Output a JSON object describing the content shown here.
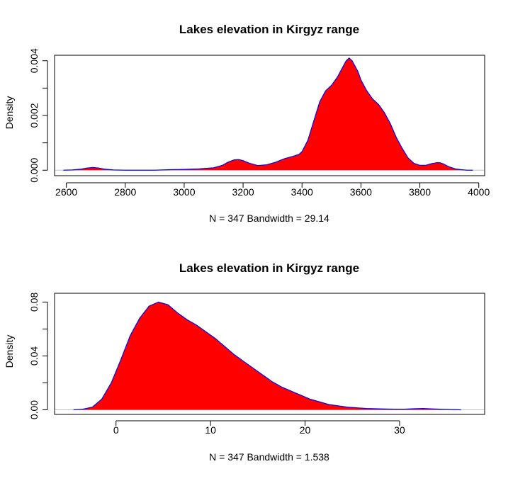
{
  "chart_data": [
    {
      "type": "area",
      "title": "Lakes elevation in Kirgyz range",
      "xlabel": "N = 347   Bandwidth = 29.14",
      "ylabel": "Density",
      "xlim": [
        2560,
        4020
      ],
      "ylim": [
        -0.0002,
        0.0042
      ],
      "xticks": [
        "2600",
        "2800",
        "3000",
        "3200",
        "3400",
        "3600",
        "3800",
        "4000"
      ],
      "yticks": [
        "0.000",
        "0.002",
        "0.004"
      ],
      "fill_color": "#ff0000",
      "line_color": "#0000ff",
      "baseline_color": "#c0c0c0",
      "x": [
        2590,
        2620,
        2650,
        2670,
        2690,
        2710,
        2730,
        2760,
        2800,
        2850,
        2900,
        2950,
        3000,
        3050,
        3100,
        3130,
        3150,
        3170,
        3185,
        3200,
        3220,
        3250,
        3280,
        3310,
        3340,
        3370,
        3390,
        3400,
        3420,
        3440,
        3460,
        3480,
        3500,
        3520,
        3540,
        3550,
        3560,
        3570,
        3580,
        3590,
        3600,
        3620,
        3640,
        3660,
        3680,
        3700,
        3720,
        3740,
        3760,
        3780,
        3800,
        3820,
        3840,
        3860,
        3870,
        3880,
        3900,
        3920,
        3940,
        3960,
        3980
      ],
      "y": [
        0.0,
        1e-05,
        4e-05,
        8e-05,
        0.0001,
        8e-05,
        4e-05,
        1e-05,
        0.0,
        0.0,
        0.0,
        2e-05,
        3e-05,
        5e-05,
        9e-05,
        0.00018,
        0.0003,
        0.00038,
        0.00039,
        0.00035,
        0.00026,
        0.00017,
        0.0002,
        0.00029,
        0.00042,
        0.00051,
        0.00058,
        0.00068,
        0.0011,
        0.0018,
        0.0025,
        0.0029,
        0.0031,
        0.0034,
        0.0038,
        0.004,
        0.0041,
        0.004,
        0.0038,
        0.0036,
        0.0033,
        0.0029,
        0.0026,
        0.0024,
        0.0021,
        0.0017,
        0.0012,
        0.0008,
        0.00045,
        0.00025,
        0.00018,
        0.00018,
        0.00024,
        0.00028,
        0.00027,
        0.00023,
        0.00012,
        5e-05,
        2e-05,
        0.0,
        0.0
      ]
    },
    {
      "type": "area",
      "title": "Lakes elevation in Kirgyz range",
      "xlabel": "N = 347   Bandwidth = 1.538",
      "ylabel": "Density",
      "xlim": [
        -6.5,
        39
      ],
      "ylim": [
        -0.0034,
        0.0865
      ],
      "xticks": [
        "0",
        "10",
        "20",
        "30"
      ],
      "yticks": [
        "0.00",
        "0.04",
        "0.08"
      ],
      "fill_color": "#ff0000",
      "line_color": "#0000ff",
      "baseline_color": "#c0c0c0",
      "x": [
        -4.5,
        -3.5,
        -2.5,
        -1.5,
        -0.5,
        0.5,
        1.5,
        2.5,
        3.5,
        4.5,
        5.5,
        6.5,
        7.5,
        8.5,
        9.5,
        10.5,
        11.5,
        12.5,
        13.5,
        14.5,
        15.5,
        16.5,
        17.5,
        18.5,
        19.5,
        20.5,
        21.5,
        22.5,
        23.5,
        24.5,
        25.5,
        26.5,
        27.5,
        28.5,
        29.5,
        30.5,
        31.5,
        32.5,
        33.5,
        34.5,
        35.5,
        36.5
      ],
      "y": [
        0.0,
        0.0005,
        0.002,
        0.008,
        0.02,
        0.037,
        0.055,
        0.068,
        0.077,
        0.08,
        0.078,
        0.072,
        0.067,
        0.063,
        0.058,
        0.053,
        0.047,
        0.041,
        0.036,
        0.031,
        0.026,
        0.021,
        0.017,
        0.014,
        0.011,
        0.008,
        0.006,
        0.004,
        0.003,
        0.002,
        0.0015,
        0.001,
        0.0008,
        0.0006,
        0.0005,
        0.0005,
        0.0008,
        0.001,
        0.0007,
        0.0004,
        0.0002,
        0.0
      ]
    }
  ]
}
